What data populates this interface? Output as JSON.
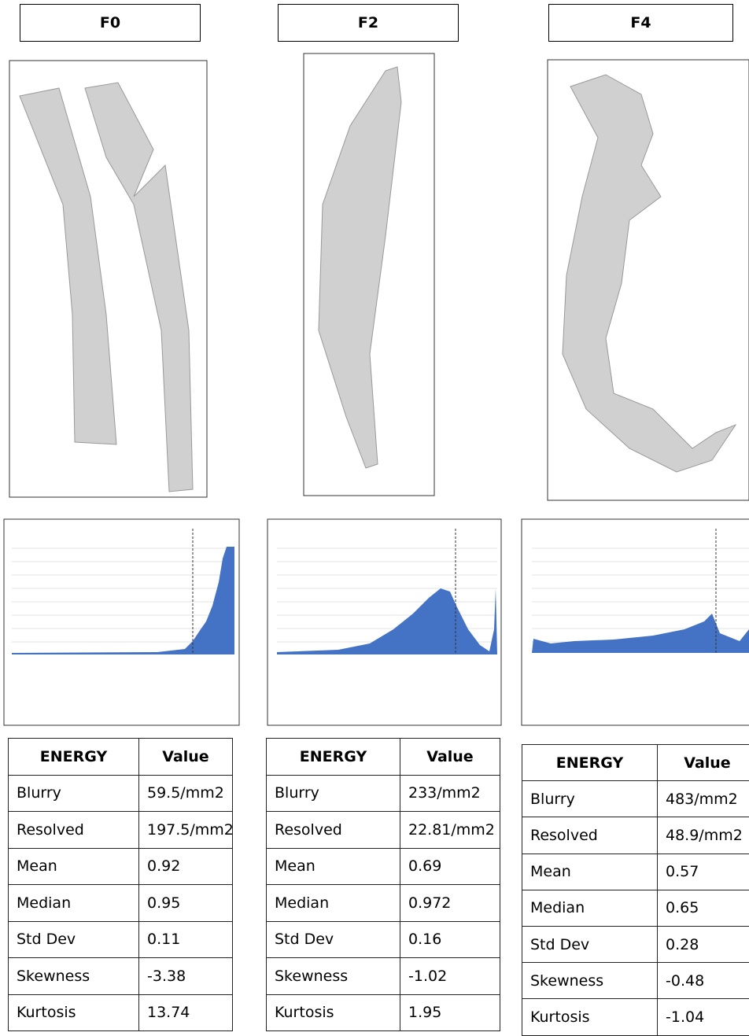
{
  "columns": [
    {
      "label": "F0",
      "table": {
        "header": [
          "ENERGY",
          "Value"
        ],
        "rows": [
          [
            "Blurry",
            "59.5/mm2"
          ],
          [
            "Resolved",
            "197.5/mm2"
          ],
          [
            "Mean",
            "0.92"
          ],
          [
            "Median",
            "0.95"
          ],
          [
            "Std Dev",
            "0.11"
          ],
          [
            "Skewness",
            "-3.38"
          ],
          [
            "Kurtosis",
            "13.74"
          ]
        ]
      }
    },
    {
      "label": "F2",
      "table": {
        "header": [
          "ENERGY",
          "Value"
        ],
        "rows": [
          [
            "Blurry",
            "233/mm2"
          ],
          [
            "Resolved",
            "22.81/mm2"
          ],
          [
            "Mean",
            "0.69"
          ],
          [
            "Median",
            "0.972"
          ],
          [
            "Std Dev",
            "0.16"
          ],
          [
            "Skewness",
            "-1.02"
          ],
          [
            "Kurtosis",
            "1.95"
          ]
        ]
      }
    },
    {
      "label": "F4",
      "table": {
        "header": [
          "ENERGY",
          "Value"
        ],
        "rows": [
          [
            "Blurry",
            "483/mm2"
          ],
          [
            "Resolved",
            "48.9/mm2"
          ],
          [
            "Mean",
            "0.57"
          ],
          [
            "Median",
            "0.65"
          ],
          [
            "Std Dev",
            "0.28"
          ],
          [
            "Skewness",
            "-0.48"
          ],
          [
            "Kurtosis",
            "-1.04"
          ]
        ]
      }
    }
  ]
}
